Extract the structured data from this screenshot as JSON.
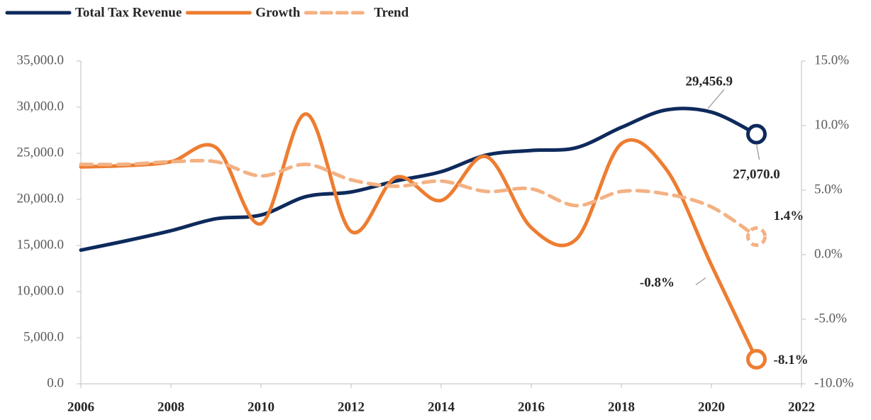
{
  "chart_data": {
    "type": "line",
    "x": [
      2006,
      2007,
      2008,
      2009,
      2010,
      2011,
      2012,
      2013,
      2014,
      2015,
      2016,
      2017,
      2018,
      2019,
      2020,
      2021
    ],
    "xlim": [
      2006,
      2022
    ],
    "xticks": [
      2006,
      2008,
      2010,
      2012,
      2014,
      2016,
      2018,
      2020,
      2022
    ],
    "ylim": [
      0,
      35000
    ],
    "yticks": [
      {
        "value": 0,
        "label": "0.0"
      },
      {
        "value": 5000,
        "label": "5,000.0"
      },
      {
        "value": 10000,
        "label": "10,000.0"
      },
      {
        "value": 15000,
        "label": "15,000.0"
      },
      {
        "value": 20000,
        "label": "20,000.0"
      },
      {
        "value": 25000,
        "label": "25,000.0"
      },
      {
        "value": 30000,
        "label": "30,000.0"
      },
      {
        "value": 35000,
        "label": "35,000.0"
      }
    ],
    "y2lim": [
      -10,
      15
    ],
    "y2ticks": [
      {
        "value": -10,
        "label": "-10.0%"
      },
      {
        "value": -5,
        "label": "-5.0%"
      },
      {
        "value": 0,
        "label": "0.0%"
      },
      {
        "value": 5,
        "label": "5.0%"
      },
      {
        "value": 10,
        "label": "10.0%"
      },
      {
        "value": 15,
        "label": "15.0%"
      }
    ],
    "grid": false,
    "legend": "top",
    "series": [
      {
        "name": "Total Tax Revenue",
        "color": "#0e2a5c",
        "dashed": false,
        "values": [
          14500,
          15500,
          16600,
          17900,
          18300,
          20300,
          20800,
          22000,
          23000,
          24800,
          25300,
          25600,
          27800,
          29700,
          29456.9,
          27070.0
        ],
        "value_labels": [
          null,
          null,
          null,
          null,
          null,
          null,
          null,
          null,
          null,
          null,
          null,
          null,
          null,
          null,
          "29,456.9",
          "27,070.0"
        ]
      },
      {
        "name": "Growth",
        "color": "#ed7d31",
        "dashed": false,
        "axis": "y2",
        "values": [
          6.8,
          6.9,
          7.2,
          8.3,
          2.4,
          10.9,
          1.8,
          6.0,
          4.2,
          7.6,
          2.1,
          1.2,
          8.6,
          6.6,
          -0.8,
          -8.1
        ],
        "value_labels": [
          null,
          null,
          null,
          null,
          null,
          null,
          null,
          null,
          null,
          null,
          null,
          null,
          null,
          null,
          "-0.8%",
          "-8.1%"
        ]
      },
      {
        "name": "Trend",
        "color": "#f4b183",
        "dashed": true,
        "axis": "y2",
        "values": [
          7.0,
          7.0,
          7.2,
          7.2,
          6.1,
          7.0,
          5.8,
          5.3,
          5.7,
          4.9,
          5.1,
          3.8,
          4.9,
          4.7,
          3.7,
          1.4
        ],
        "value_labels": [
          null,
          null,
          null,
          null,
          null,
          null,
          null,
          null,
          null,
          null,
          null,
          null,
          null,
          null,
          null,
          "1.4%"
        ]
      }
    ]
  }
}
